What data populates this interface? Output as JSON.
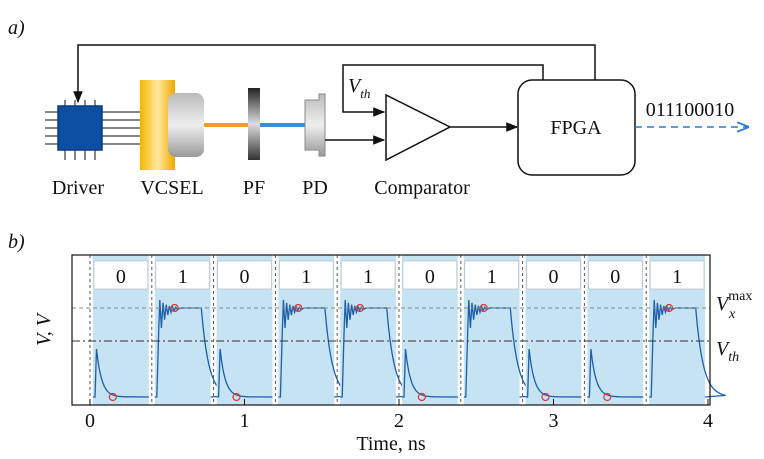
{
  "diagram": {
    "panel_label": "a)",
    "components": [
      "Driver",
      "VCSEL",
      "PF",
      "PD",
      "Comparator"
    ],
    "fpga": "FPGA",
    "output_bits": "011100010",
    "threshold": {
      "symbol": "V",
      "sub": "th"
    }
  },
  "chart_data": {
    "type": "pulse",
    "panel_label": "b)",
    "xlabel": "Time, ns",
    "ylabel": "V, V",
    "xlim": [
      0,
      4
    ],
    "xticks": [
      0,
      1,
      2,
      3,
      4
    ],
    "bits": [
      "0",
      "1",
      "0",
      "1",
      "1",
      "0",
      "1",
      "0",
      "0",
      "1"
    ],
    "levels": [
      {
        "symbol": "V",
        "sub": "x",
        "sup": "max"
      },
      {
        "symbol": "V",
        "sub": "th"
      }
    ],
    "color": "#1f5fa8",
    "window_color": "#c6e3f3"
  }
}
